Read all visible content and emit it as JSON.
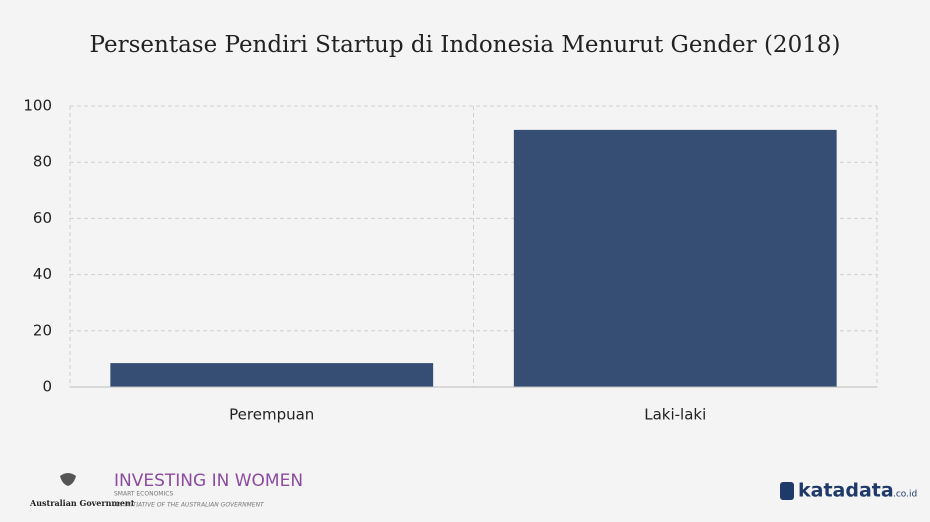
{
  "chart_data": {
    "type": "bar",
    "title": "Persentase Pendiri Startup di Indonesia Menurut Gender (2018)",
    "categories": [
      "Perempuan",
      "Laki-laki"
    ],
    "values": [
      8.5,
      91.5
    ],
    "color": "#364e74",
    "ylim": [
      0,
      100
    ],
    "yticks": [
      0,
      20,
      40,
      60,
      80,
      100
    ],
    "grid": true
  },
  "footer": {
    "gov": "Australian Government",
    "iiw": "INVESTING IN WOMEN",
    "smart": "SMART ECONOMICS",
    "initiative": "AN INITIATIVE OF THE AUSTRALIAN GOVERNMENT",
    "brand": "katadata",
    "domain": ".co.id"
  }
}
